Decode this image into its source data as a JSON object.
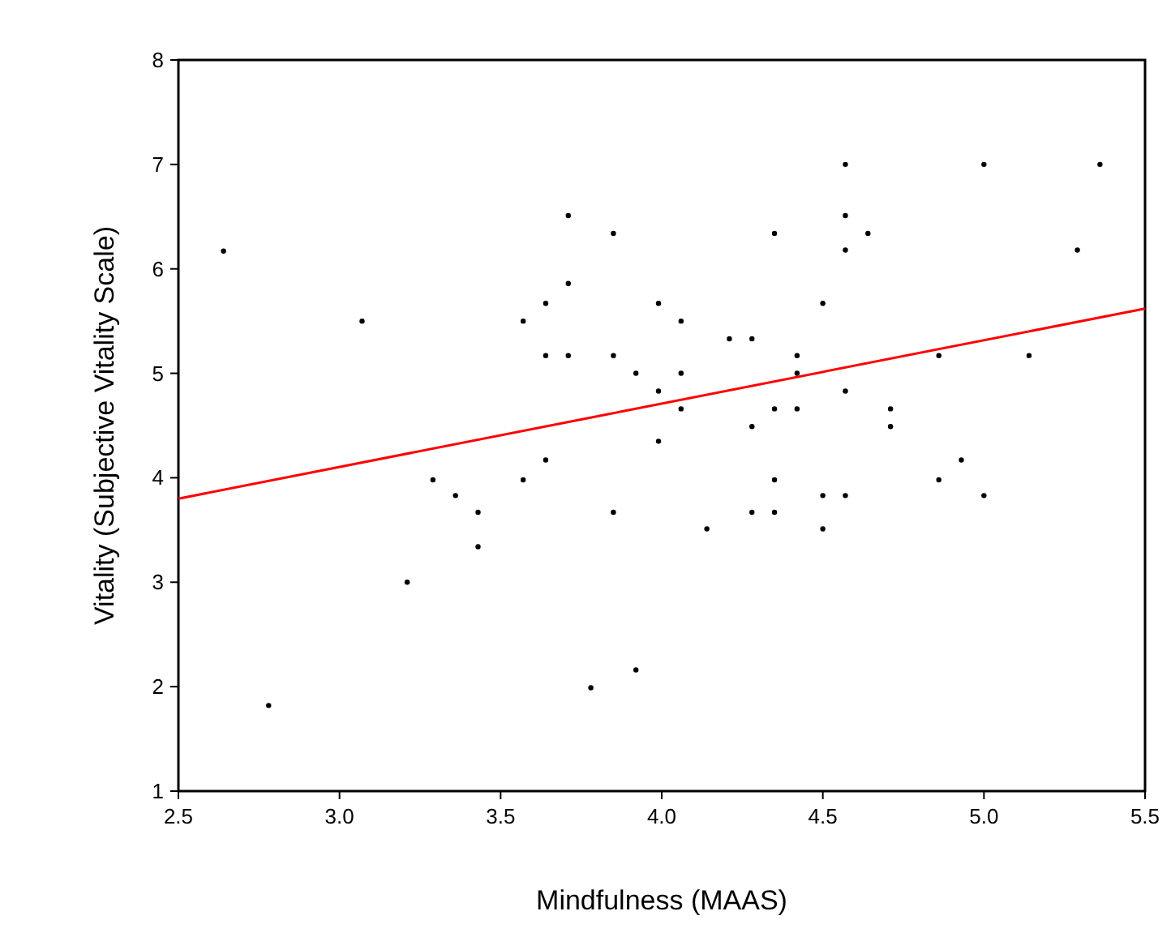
{
  "chart_data": {
    "type": "scatter",
    "xlabel": "Mindfulness (MAAS)",
    "ylabel": "Vitality (Subjective Vitality Scale)",
    "xlim": [
      2.5,
      5.5
    ],
    "xticks": [
      {
        "value": 2.5,
        "label": "2.5"
      },
      {
        "value": 3,
        "label": "3.0"
      },
      {
        "value": 3.5,
        "label": "3.5"
      },
      {
        "value": 4,
        "label": "4.0"
      },
      {
        "value": 4.5,
        "label": "4.5"
      },
      {
        "value": 5,
        "label": "5.0"
      },
      {
        "value": 5.5,
        "label": "5.5"
      }
    ],
    "ylim": [
      1,
      8
    ],
    "yticks": [
      1,
      2,
      3,
      4,
      5,
      6,
      7,
      8
    ],
    "grid": false,
    "series": [
      {
        "marker": "circle",
        "color": "#000000",
        "x": [
          2.64,
          3.07,
          3.29,
          3.36,
          3.43,
          3.43,
          3.21,
          2.78,
          3.57,
          3.64,
          3.64,
          3.71,
          3.71,
          3.71,
          3.57,
          3.64,
          3.85,
          3.85,
          3.92,
          3.85,
          3.78,
          3.92,
          3.99,
          3.99,
          3.99,
          4.06,
          4.06,
          4.06,
          4.21,
          4.28,
          4.28,
          4.14,
          4.28,
          4.35,
          4.35,
          4.35,
          4.35,
          4.42,
          4.42,
          4.42,
          4.5,
          4.5,
          4.5,
          4.57,
          4.57,
          4.57,
          4.57,
          4.57,
          4.64,
          4.71,
          4.71,
          4.86,
          4.86,
          4.93,
          5.0,
          5.0,
          5.14,
          5.29,
          5.36
        ],
        "values": [
          6.17,
          5.5,
          3.98,
          3.83,
          3.67,
          3.34,
          3.0,
          1.82,
          5.5,
          5.67,
          5.17,
          6.51,
          5.86,
          5.17,
          3.98,
          4.17,
          6.34,
          5.17,
          5.0,
          3.67,
          1.99,
          2.16,
          5.67,
          4.83,
          4.35,
          5.5,
          5.0,
          4.66,
          5.33,
          5.33,
          4.49,
          3.51,
          3.67,
          6.34,
          4.66,
          3.98,
          3.67,
          5.17,
          5.0,
          4.66,
          5.67,
          3.83,
          3.51,
          7.0,
          6.51,
          6.18,
          4.83,
          3.83,
          6.34,
          4.66,
          4.49,
          5.17,
          3.98,
          4.17,
          7.0,
          3.83,
          5.17,
          6.18,
          7.0
        ]
      },
      {
        "type": "line",
        "color": "#ff0000",
        "x": [
          2.5,
          5.5
        ],
        "values": [
          3.8,
          5.62
        ]
      }
    ]
  }
}
